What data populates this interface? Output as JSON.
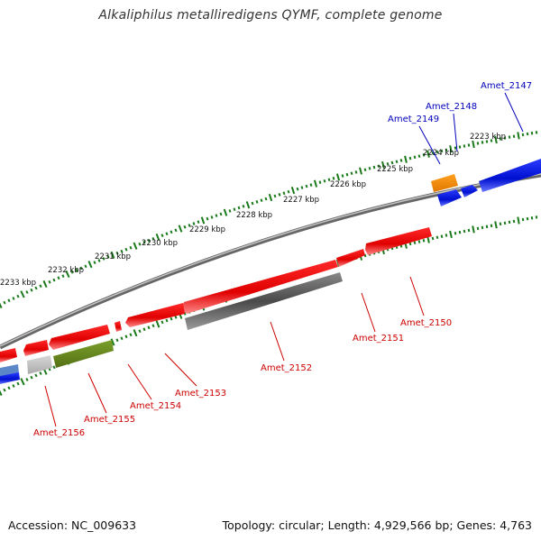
{
  "title": "Alkaliphilus metalliredigens QYMF, complete genome",
  "footer": {
    "accession": "Accession: NC_009633",
    "summary": "Topology: circular; Length: 4,929,566 bp; Genes: 4,763"
  },
  "tick_labels": [
    "2223 kbp",
    "2224 kbp",
    "2225 kbp",
    "2226 kbp",
    "2227 kbp",
    "2228 kbp",
    "2229 kbp",
    "2230 kbp",
    "2231 kbp",
    "2232 kbp",
    "2233 kbp"
  ],
  "colors": {
    "backbone": "#8c8c8c",
    "forward_gene": "#ee1111",
    "reverse_gene": "#555555",
    "blue_gene": "#0a14d6",
    "orange_gene": "#f08a00",
    "olive_gene": "#6a8a1e",
    "light_gene": "#bbbbbb",
    "tick_green": "#1a7a1a",
    "label_red": "#cc0000",
    "label_blue": "#0000bb"
  },
  "gene_labels": {
    "amet_2147": "Amet_2147",
    "amet_2148": "Amet_2148",
    "amet_2149": "Amet_2149",
    "amet_2150": "Amet_2150",
    "amet_2151": "Amet_2151",
    "amet_2152": "Amet_2152",
    "amet_2153": "Amet_2153",
    "amet_2154": "Amet_2154",
    "amet_2155": "Amet_2155",
    "amet_2156": "Amet_2156"
  }
}
